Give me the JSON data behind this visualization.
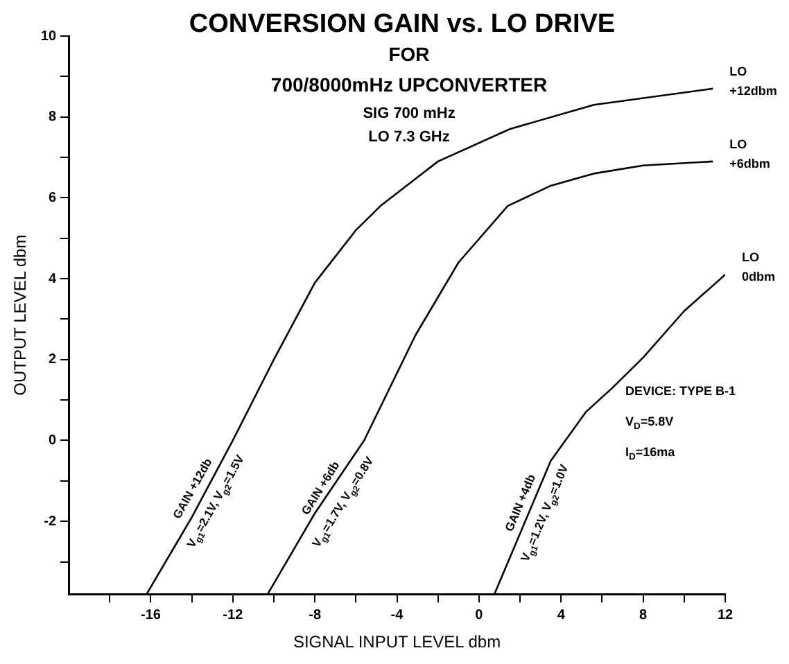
{
  "chart_data": {
    "type": "line",
    "title": "CONVERSION GAIN vs. LO DRIVE",
    "subtitle": "FOR\n700/8000mHz UPCONVERTER\nSIG 700 mHz\nLO 7.3 GHz",
    "xlabel": "SIGNAL INPUT LEVEL dbm",
    "ylabel": "OUTPUT LEVEL dbm",
    "series": [
      {
        "name": "LO +12dbm",
        "color": "#000000",
        "x": [
          -16.2,
          -14,
          -12,
          -10,
          -8,
          -6,
          -4.8,
          -2,
          1.5,
          5.6,
          11.4
        ],
        "values": [
          -3.8,
          -1.9,
          0,
          2,
          3.9,
          5.2,
          5.8,
          6.9,
          7.7,
          8.3,
          8.7
        ]
      },
      {
        "name": "LO +6dbm",
        "color": "#000000",
        "x": [
          -10.3,
          -8,
          -5.6,
          -3.1,
          -1,
          1.4,
          3.5,
          5.6,
          8,
          11.4
        ],
        "values": [
          -3.8,
          -1.8,
          0,
          2.6,
          4.4,
          5.8,
          6.3,
          6.6,
          6.8,
          6.9
        ]
      },
      {
        "name": "LO 0dbm",
        "color": "#000000",
        "x": [
          0.75,
          2,
          3.5,
          5.2,
          6.5,
          8,
          10,
          12
        ],
        "values": [
          -3.8,
          -2.3,
          -0.5,
          0.7,
          1.3,
          2.05,
          3.2,
          4.1
        ]
      }
    ],
    "annotations": [
      "GAIN +12db",
      "V$_{g1}$=2.1V, V$_{g2}$=1.5V",
      "GAIN +6db",
      "V$_{g1}$=1.7V, V$_{g2}$=0.8V",
      "GAIN +4db",
      "V$_{g1}$=1.2V, V$_{g2}$=1.0V",
      "DEVICE: TYPE B-1",
      "V$_{D}$=5.8V",
      "I$_{D}$=16ma"
    ],
    "xlim": [
      -20,
      12
    ],
    "ylim": [
      -3.8,
      10
    ],
    "xticks": [
      {
        "value": -18,
        "label": null
      },
      -16,
      {
        "value": -14,
        "label": null
      },
      -12,
      {
        "value": -10,
        "label": null
      },
      -8,
      {
        "value": -6,
        "label": null
      },
      -4,
      {
        "value": -2,
        "label": null
      },
      0,
      {
        "value": 2,
        "label": null
      },
      4,
      {
        "value": 6,
        "label": null
      },
      8,
      {
        "value": 10,
        "label": null
      },
      12
    ],
    "yticks": [
      {
        "value": -3,
        "label": null
      },
      -2,
      {
        "value": -1,
        "label": null
      },
      0,
      {
        "value": 1,
        "label": null
      },
      2,
      {
        "value": 3,
        "label": null
      },
      4,
      {
        "value": 5,
        "label": null
      },
      6,
      {
        "value": 7,
        "label": null
      },
      8,
      {
        "value": 9,
        "label": null
      },
      10
    ],
    "grid": false,
    "legend": false,
    "marker": "none",
    "line_style": "solid"
  }
}
